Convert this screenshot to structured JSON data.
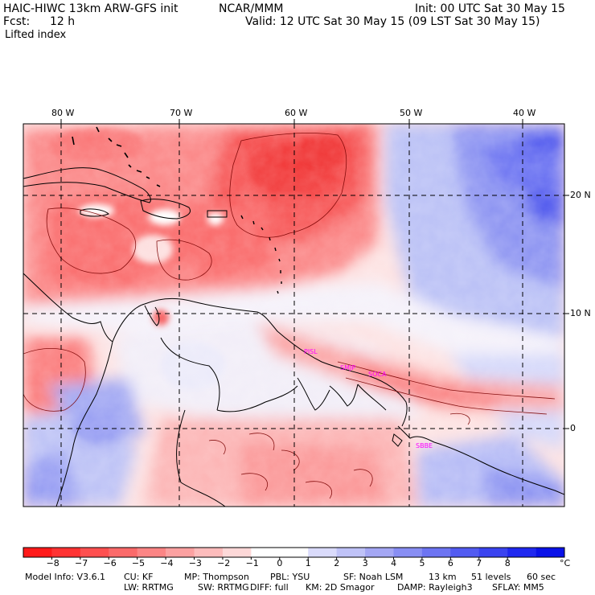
{
  "header": {
    "model": "HAIC-HIWC 13km ARW-GFS init",
    "org": "NCAR/MMM",
    "init": "Init: 00 UTC Sat 30 May 15",
    "fcst_label": "Fcst:",
    "fcst_value": "12 h",
    "valid": "Valid: 12 UTC Sat 30 May 15 (09 LST Sat 30 May 15)",
    "field": "Lifted index"
  },
  "map": {
    "lon_labels": [
      "80 W",
      "70 W",
      "60 W",
      "50 W",
      "40 W"
    ],
    "lat_labels": [
      "20 N",
      "10 N",
      "0"
    ],
    "stations": [
      "PISL",
      "SMJP",
      "SOCA",
      "SBBE"
    ]
  },
  "colorbar": {
    "colors": [
      "#ff1a1a",
      "#ff3333",
      "#ff5050",
      "#fb6a6a",
      "#fc8585",
      "#fca1a1",
      "#fdbcbc",
      "#fdd8d8",
      "#ffffff",
      "#ffffff",
      "#dadbfb",
      "#bfc2f7",
      "#a4a7f4",
      "#888ef3",
      "#6d74f2",
      "#525bf1",
      "#3a43f0",
      "#1f28ef",
      "#0a12e8"
    ],
    "labels": [
      "−8",
      "−7",
      "−6",
      "−5",
      "−4",
      "−3",
      "−2",
      "−1",
      "0",
      "1",
      "2",
      "3",
      "4",
      "5",
      "6",
      "7",
      "8"
    ],
    "unit": "°C"
  },
  "footer": {
    "line1": [
      "Model Info: V3.6.1",
      "CU: KF",
      "MP: Thompson",
      "PBL: YSU",
      "SF: Noah LSM",
      "13 km",
      "51 levels",
      "60 sec"
    ],
    "line2": [
      "LW: RRTMG",
      "SW: RRTMG",
      "DIFF: full",
      "KM: 2D Smagor",
      "DAMP: Rayleigh3",
      "SFLAY: MM5"
    ]
  }
}
